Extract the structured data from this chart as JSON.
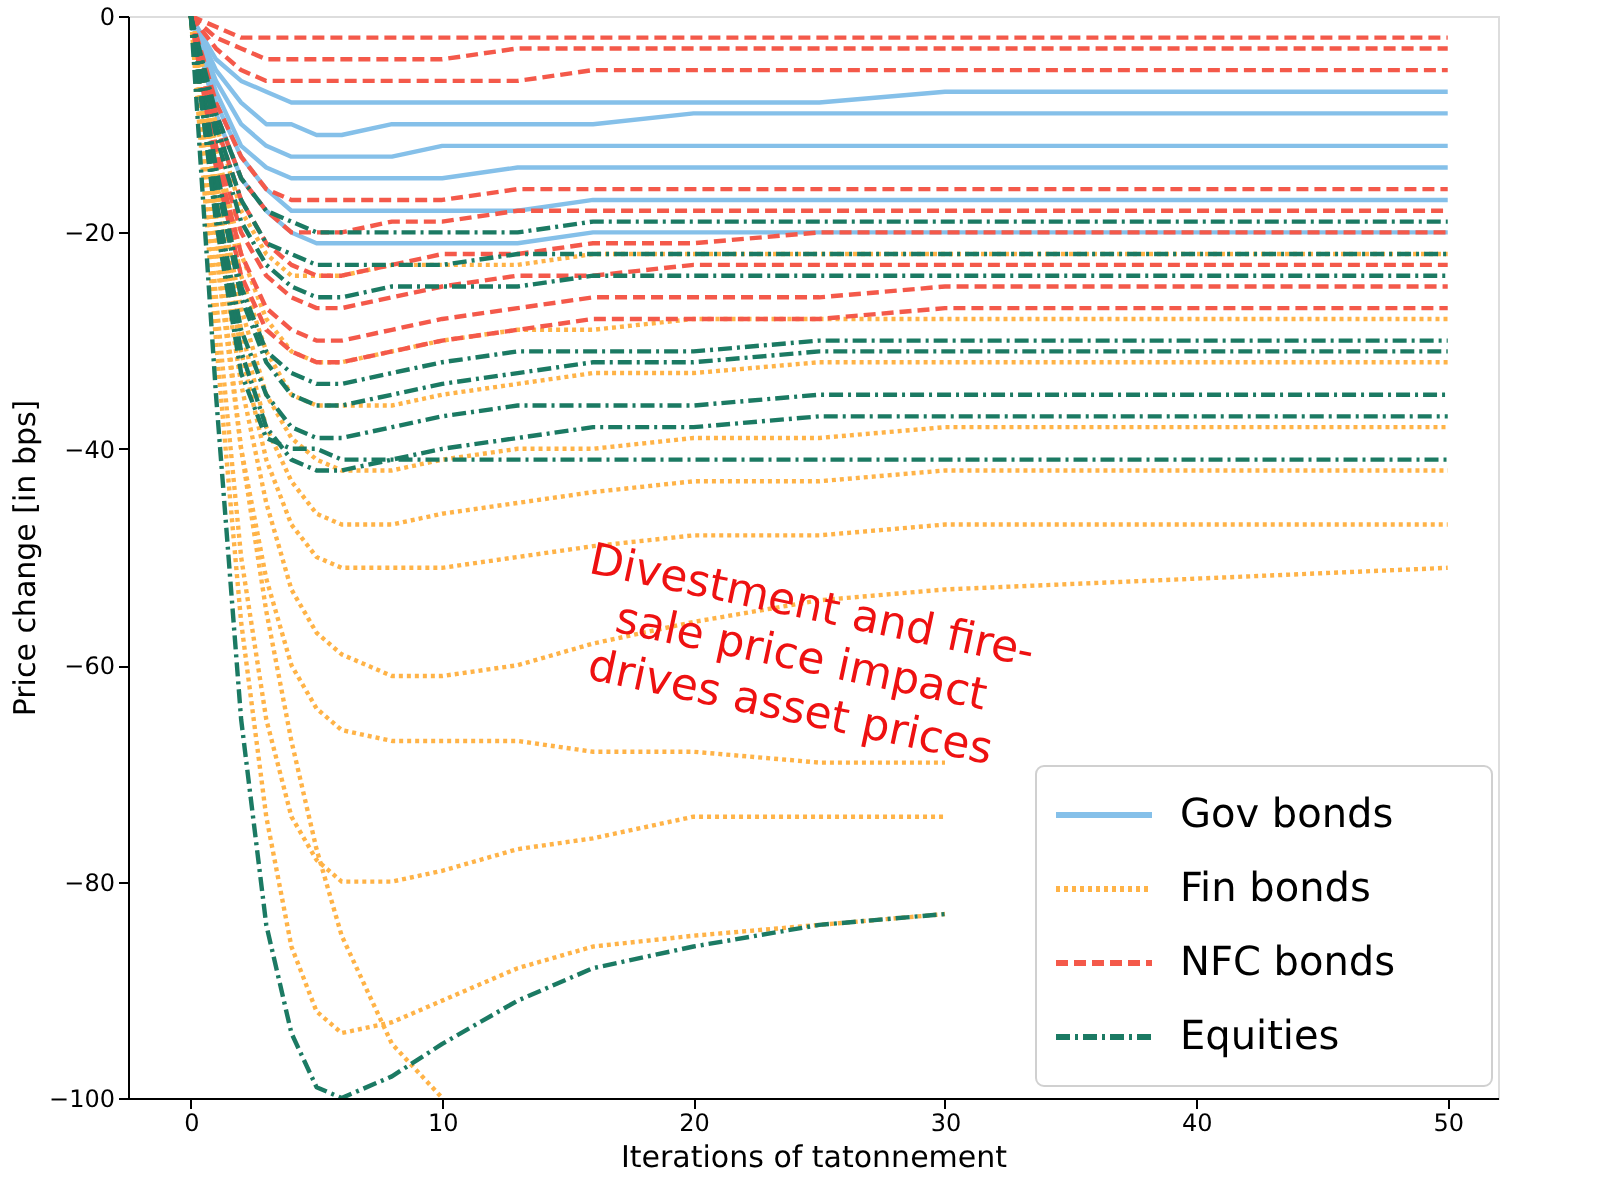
{
  "chart_data": {
    "type": "line",
    "xlabel": "Iterations of tatonnement",
    "ylabel": "Price change [in bps]",
    "x": [
      0,
      1,
      2,
      3,
      4,
      5,
      6,
      8,
      10,
      13,
      16,
      20,
      25,
      30,
      40,
      50
    ],
    "xlim": [
      -2.5,
      52
    ],
    "xticks": [
      0,
      10,
      20,
      30,
      40,
      50
    ],
    "ylim": [
      -100,
      0
    ],
    "yticks": [
      -100,
      -80,
      -60,
      -40,
      -20,
      0
    ],
    "grid": false,
    "legend": "bottom right",
    "annotations": [
      "Divestment and fire-\nsale price impact\ndrives asset prices"
    ],
    "series": [
      {
        "name": "Gov bonds",
        "color": "#85c0e9",
        "line_style": "solid",
        "values": [
          0,
          -4,
          -6,
          -7,
          -8,
          -8,
          -8,
          -8,
          -8,
          -8,
          -8,
          -8,
          -8,
          -7,
          -7,
          -7
        ]
      },
      {
        "color": "#85c0e9",
        "line_style": "solid",
        "values": [
          0,
          -5,
          -8,
          -10,
          -10,
          -11,
          -11,
          -10,
          -10,
          -10,
          -10,
          -9,
          -9,
          -9,
          -9,
          -9
        ]
      },
      {
        "color": "#85c0e9",
        "line_style": "solid",
        "values": [
          0,
          -6,
          -10,
          -12,
          -13,
          -13,
          -13,
          -13,
          -12,
          -12,
          -12,
          -12,
          -12,
          -12,
          -12,
          -12
        ]
      },
      {
        "color": "#85c0e9",
        "line_style": "solid",
        "values": [
          0,
          -7,
          -12,
          -14,
          -15,
          -15,
          -15,
          -15,
          -15,
          -14,
          -14,
          -14,
          -14,
          -14,
          -14,
          -14
        ]
      },
      {
        "color": "#85c0e9",
        "line_style": "solid",
        "values": [
          0,
          -8,
          -13,
          -16,
          -18,
          -18,
          -18,
          -18,
          -18,
          -18,
          -17,
          -17,
          -17,
          -17,
          -17,
          -17
        ]
      },
      {
        "color": "#85c0e9",
        "line_style": "solid",
        "values": [
          0,
          -9,
          -15,
          -18,
          -20,
          -21,
          -21,
          -21,
          -21,
          -21,
          -20,
          -20,
          -20,
          -20,
          -20,
          -20
        ]
      },
      {
        "name": "Fin bonds",
        "color": "#ffb347",
        "line_style": "dotted",
        "values": [
          0,
          -10,
          -18,
          -22,
          -24,
          -24,
          -24,
          -23,
          -23,
          -23,
          -22,
          -22,
          -22,
          -22,
          -22,
          -22
        ]
      },
      {
        "color": "#ffb347",
        "line_style": "dotted",
        "values": [
          0,
          -12,
          -22,
          -28,
          -31,
          -32,
          -32,
          -31,
          -30,
          -29,
          -29,
          -28,
          -28,
          -28,
          -28,
          -28
        ]
      },
      {
        "color": "#ffb347",
        "line_style": "dotted",
        "values": [
          0,
          -13,
          -24,
          -31,
          -35,
          -36,
          -36,
          -36,
          -35,
          -34,
          -33,
          -33,
          -32,
          -32,
          -32,
          -32
        ]
      },
      {
        "color": "#ffb347",
        "line_style": "dotted",
        "values": [
          0,
          -15,
          -27,
          -35,
          -39,
          -41,
          -42,
          -42,
          -41,
          -40,
          -40,
          -39,
          -39,
          -38,
          -38,
          -38
        ]
      },
      {
        "color": "#ffb347",
        "line_style": "dotted",
        "values": [
          0,
          -16,
          -29,
          -38,
          -43,
          -46,
          -47,
          -47,
          -46,
          -45,
          -44,
          -43,
          -43,
          -42,
          -42,
          -42
        ]
      },
      {
        "color": "#ffb347",
        "line_style": "dotted",
        "values": [
          0,
          -17,
          -31,
          -41,
          -47,
          -50,
          -51,
          -51,
          -51,
          -50,
          -49,
          -48,
          -48,
          -47,
          -47,
          -47
        ]
      },
      {
        "color": "#ffb347",
        "line_style": "dotted",
        "values": [
          0,
          -19,
          -34,
          -45,
          -53,
          -57,
          -59,
          -61,
          -61,
          -60,
          -58,
          -56,
          -54,
          -53,
          -52,
          -51
        ]
      },
      {
        "color": "#ffb347",
        "line_style": "dotted",
        "values": [
          0,
          -22,
          -40,
          -52,
          -60,
          -64,
          -66,
          -67,
          -67,
          -67,
          -68,
          -68,
          -69,
          -69,
          null,
          null
        ]
      },
      {
        "color": "#ffb347",
        "line_style": "dotted",
        "values": [
          0,
          -26,
          -50,
          -65,
          -74,
          -78,
          -80,
          -80,
          -79,
          -77,
          -76,
          -74,
          -74,
          -74,
          null,
          null
        ]
      },
      {
        "color": "#ffb347",
        "line_style": "dotted",
        "values": [
          0,
          -30,
          -56,
          -74,
          -86,
          -92,
          -94,
          -93,
          -91,
          -88,
          -86,
          -85,
          -84,
          -83,
          null,
          null
        ]
      },
      {
        "color": "#ffb347",
        "line_style": "dotted",
        "values": [
          0,
          -20,
          -40,
          -55,
          -67,
          -77,
          -85,
          -95,
          -100,
          null,
          null,
          null,
          null,
          null,
          null,
          null
        ]
      },
      {
        "name": "NFC bonds",
        "color": "#f4594a",
        "line_style": "dashed",
        "values": [
          0,
          -1,
          -2,
          -2,
          -2,
          -2,
          -2,
          -2,
          -2,
          -2,
          -2,
          -2,
          -2,
          -2,
          -2,
          -2
        ]
      },
      {
        "color": "#f4594a",
        "line_style": "dashed",
        "values": [
          0,
          -2,
          -3,
          -4,
          -4,
          -4,
          -4,
          -4,
          -4,
          -3,
          -3,
          -3,
          -3,
          -3,
          -3,
          -3
        ]
      },
      {
        "color": "#f4594a",
        "line_style": "dashed",
        "values": [
          0,
          -3,
          -5,
          -6,
          -6,
          -6,
          -6,
          -6,
          -6,
          -6,
          -5,
          -5,
          -5,
          -5,
          -5,
          -5
        ]
      },
      {
        "color": "#f4594a",
        "line_style": "dashed",
        "values": [
          0,
          -8,
          -13,
          -16,
          -17,
          -17,
          -17,
          -17,
          -17,
          -16,
          -16,
          -16,
          -16,
          -16,
          -16,
          -16
        ]
      },
      {
        "color": "#f4594a",
        "line_style": "dashed",
        "values": [
          0,
          -9,
          -15,
          -18,
          -20,
          -20,
          -20,
          -19,
          -19,
          -18,
          -18,
          -18,
          -18,
          -18,
          -18,
          -18
        ]
      },
      {
        "color": "#f4594a",
        "line_style": "dashed",
        "values": [
          0,
          -10,
          -17,
          -21,
          -23,
          -24,
          -24,
          -23,
          -22,
          -22,
          -21,
          -21,
          -20,
          -20,
          -20,
          -20
        ]
      },
      {
        "color": "#f4594a",
        "line_style": "dashed",
        "values": [
          0,
          -12,
          -20,
          -24,
          -26,
          -27,
          -27,
          -26,
          -25,
          -24,
          -24,
          -23,
          -23,
          -23,
          -23,
          -23
        ]
      },
      {
        "color": "#f4594a",
        "line_style": "dashed",
        "values": [
          0,
          -13,
          -22,
          -27,
          -29,
          -30,
          -30,
          -29,
          -28,
          -27,
          -26,
          -26,
          -26,
          -25,
          -25,
          -25
        ]
      },
      {
        "color": "#f4594a",
        "line_style": "dashed",
        "values": [
          0,
          -14,
          -24,
          -29,
          -31,
          -32,
          -32,
          -31,
          -30,
          -29,
          -28,
          -28,
          -28,
          -27,
          -27,
          -27
        ]
      },
      {
        "name": "Equities",
        "color": "#1b7a63",
        "line_style": "dashdot",
        "values": [
          0,
          -9,
          -15,
          -18,
          -19,
          -20,
          -20,
          -20,
          -20,
          -20,
          -19,
          -19,
          -19,
          -19,
          -19,
          -19
        ]
      },
      {
        "color": "#1b7a63",
        "line_style": "dashdot",
        "values": [
          0,
          -10,
          -17,
          -21,
          -22,
          -23,
          -23,
          -23,
          -23,
          -22,
          -22,
          -22,
          -22,
          -22,
          -22,
          -22
        ]
      },
      {
        "color": "#1b7a63",
        "line_style": "dashdot",
        "values": [
          0,
          -11,
          -19,
          -23,
          -25,
          -26,
          -26,
          -25,
          -25,
          -25,
          -24,
          -24,
          -24,
          -24,
          -24,
          -24
        ]
      },
      {
        "color": "#1b7a63",
        "line_style": "dashdot",
        "values": [
          0,
          -14,
          -25,
          -31,
          -33,
          -34,
          -34,
          -33,
          -32,
          -31,
          -31,
          -31,
          -30,
          -30,
          -30,
          -30
        ]
      },
      {
        "color": "#1b7a63",
        "line_style": "dashdot",
        "values": [
          0,
          -15,
          -26,
          -32,
          -35,
          -36,
          -36,
          -35,
          -34,
          -33,
          -32,
          -32,
          -31,
          -31,
          -31,
          -31
        ]
      },
      {
        "color": "#1b7a63",
        "line_style": "dashdot",
        "values": [
          0,
          -17,
          -29,
          -35,
          -38,
          -39,
          -39,
          -38,
          -37,
          -36,
          -36,
          -36,
          -35,
          -35,
          -35,
          -35
        ]
      },
      {
        "color": "#1b7a63",
        "line_style": "dashdot",
        "values": [
          0,
          -18,
          -31,
          -38,
          -41,
          -42,
          -42,
          -41,
          -40,
          -39,
          -38,
          -38,
          -37,
          -37,
          -37,
          -37
        ]
      },
      {
        "color": "#1b7a63",
        "line_style": "dashdot",
        "values": [
          0,
          -19,
          -33,
          -39,
          -40,
          -40,
          -41,
          -41,
          -41,
          -41,
          -41,
          -41,
          -41,
          -41,
          -41,
          -41
        ]
      },
      {
        "color": "#1b7a63",
        "line_style": "dashdot",
        "values": [
          0,
          -35,
          -65,
          -84,
          -94,
          -99,
          -100,
          -98,
          -95,
          -91,
          -88,
          -86,
          -84,
          -83,
          null,
          null
        ]
      }
    ]
  }
}
